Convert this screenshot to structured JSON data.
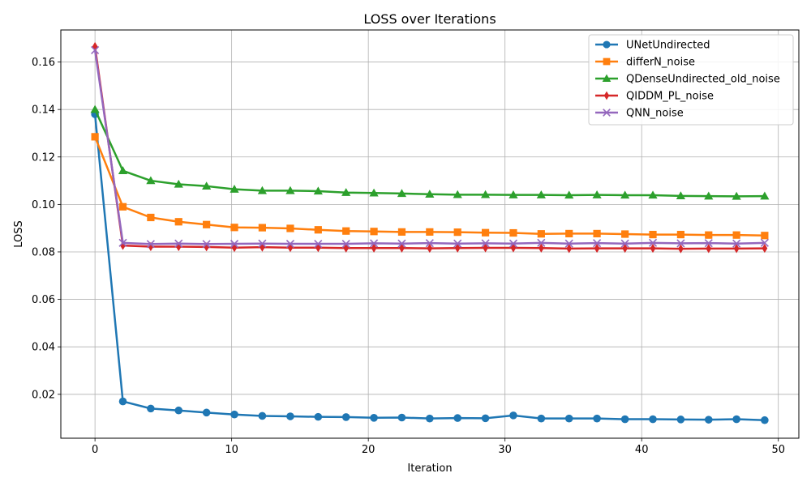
{
  "chart_data": {
    "type": "line",
    "title": "LOSS over Iterations",
    "xlabel": "Iteration",
    "ylabel": "LOSS",
    "xlim": [
      -2.5,
      51.5
    ],
    "ylim": [
      0.0015,
      0.1735
    ],
    "xticks": [
      0,
      10,
      20,
      30,
      40,
      50
    ],
    "yticks": [
      0.02,
      0.04,
      0.06,
      0.08,
      0.1,
      0.12,
      0.14,
      0.16
    ],
    "ytick_labels": [
      "0.02",
      "0.04",
      "0.06",
      "0.08",
      "0.10",
      "0.12",
      "0.14",
      "0.16"
    ],
    "grid": true,
    "legend_position": "upper right",
    "x": [
      0,
      2.04,
      4.08,
      6.12,
      8.16,
      10.2,
      12.24,
      14.29,
      16.33,
      18.37,
      20.41,
      22.45,
      24.49,
      26.53,
      28.57,
      30.61,
      32.65,
      34.69,
      36.73,
      38.78,
      40.82,
      42.86,
      44.9,
      46.94,
      49
    ],
    "series": [
      {
        "name": "UNetUndirected",
        "color": "#1f77b4",
        "marker": "circle",
        "values": [
          0.138,
          0.017,
          0.014,
          0.0132,
          0.0123,
          0.0115,
          0.0109,
          0.0107,
          0.0105,
          0.0104,
          0.0101,
          0.0102,
          0.0098,
          0.01,
          0.0099,
          0.0111,
          0.0098,
          0.0098,
          0.0098,
          0.0095,
          0.0095,
          0.0094,
          0.0093,
          0.0095,
          0.0091
        ]
      },
      {
        "name": "differN_noise",
        "color": "#ff7f0e",
        "marker": "square",
        "values": [
          0.1285,
          0.099,
          0.0945,
          0.0927,
          0.0915,
          0.0903,
          0.0902,
          0.0899,
          0.0893,
          0.0888,
          0.0886,
          0.0884,
          0.0884,
          0.0883,
          0.0881,
          0.088,
          0.0876,
          0.0877,
          0.0877,
          0.0875,
          0.0873,
          0.0873,
          0.0871,
          0.0871,
          0.0869
        ]
      },
      {
        "name": "QDenseUndirected_old_noise",
        "color": "#2ca02c",
        "marker": "triangle",
        "values": [
          0.14,
          0.1142,
          0.11,
          0.1085,
          0.1077,
          0.1064,
          0.1058,
          0.1058,
          0.1056,
          0.105,
          0.1048,
          0.1046,
          0.1043,
          0.1041,
          0.1041,
          0.104,
          0.104,
          0.1039,
          0.104,
          0.1039,
          0.1039,
          0.1036,
          0.1035,
          0.1034,
          0.1035
        ]
      },
      {
        "name": "QIDDM_PL_noise",
        "color": "#d62728",
        "marker": "thin_diamond",
        "values": [
          0.1665,
          0.0827,
          0.0822,
          0.0822,
          0.0821,
          0.0818,
          0.082,
          0.0818,
          0.0818,
          0.0816,
          0.0816,
          0.0816,
          0.0815,
          0.0816,
          0.0817,
          0.0817,
          0.0816,
          0.0814,
          0.0815,
          0.0815,
          0.0815,
          0.0813,
          0.0814,
          0.0814,
          0.0815
        ]
      },
      {
        "name": "QNN_noise",
        "color": "#9467bd",
        "marker": "x",
        "values": [
          0.165,
          0.0838,
          0.0833,
          0.0835,
          0.0833,
          0.0834,
          0.0835,
          0.0834,
          0.0834,
          0.0834,
          0.0836,
          0.0835,
          0.0837,
          0.0835,
          0.0836,
          0.0835,
          0.0838,
          0.0835,
          0.0837,
          0.0835,
          0.0838,
          0.0836,
          0.0837,
          0.0835,
          0.0838
        ]
      }
    ]
  }
}
